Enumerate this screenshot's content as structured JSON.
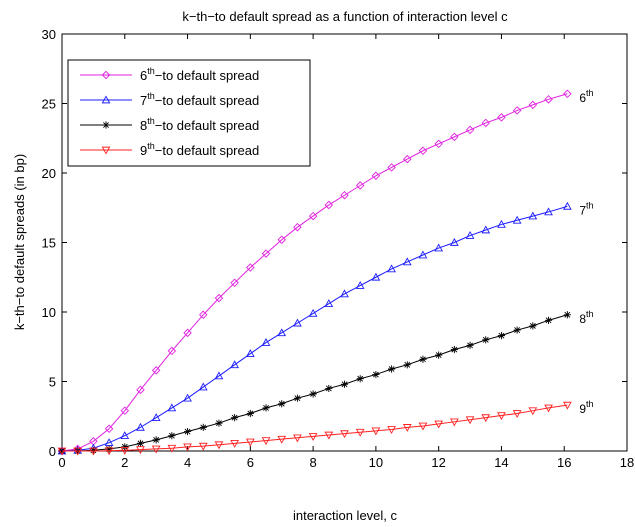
{
  "chart_data": {
    "type": "line",
    "title": "k−th−to default spread as a function of interaction level c",
    "xlabel": "interaction level, c",
    "ylabel": "k−th−to default spreads (in bp)",
    "xlim": [
      0,
      18
    ],
    "ylim": [
      0,
      30
    ],
    "xticks": [
      0,
      2,
      4,
      6,
      8,
      10,
      12,
      14,
      16,
      18
    ],
    "yticks": [
      0,
      5,
      10,
      15,
      20,
      25,
      30
    ],
    "grid": false,
    "legend_position": "top-left",
    "x": [
      0,
      0.5,
      1.0,
      1.5,
      2.0,
      2.5,
      3.0,
      3.5,
      4.0,
      4.5,
      5.0,
      5.5,
      6.0,
      6.5,
      7.0,
      7.5,
      8.0,
      8.5,
      9.0,
      9.5,
      10.0,
      10.5,
      11.0,
      11.5,
      12.0,
      12.5,
      13.0,
      13.5,
      14.0,
      14.5,
      15.0,
      15.5,
      16.1
    ],
    "series": [
      {
        "name": "6th−to default spread",
        "sup": "th",
        "base": "6",
        "rest": "−to default spread",
        "end_label_base": "6",
        "end_label_sup": "th",
        "color": "#e020e0",
        "marker": "diamond",
        "values": [
          0.0,
          0.15,
          0.7,
          1.6,
          2.9,
          4.4,
          5.8,
          7.2,
          8.5,
          9.8,
          11.0,
          12.1,
          13.2,
          14.2,
          15.2,
          16.1,
          16.9,
          17.7,
          18.4,
          19.1,
          19.8,
          20.4,
          21.0,
          21.6,
          22.1,
          22.6,
          23.1,
          23.6,
          24.0,
          24.5,
          24.9,
          25.3,
          25.7
        ]
      },
      {
        "name": "7th−to default spread",
        "sup": "th",
        "base": "7",
        "rest": "−to default spread",
        "end_label_base": "7",
        "end_label_sup": "th",
        "color": "#1c1cff",
        "marker": "triangle-up",
        "values": [
          0.0,
          0.05,
          0.2,
          0.6,
          1.1,
          1.7,
          2.4,
          3.1,
          3.8,
          4.6,
          5.4,
          6.2,
          7.0,
          7.8,
          8.5,
          9.2,
          9.9,
          10.6,
          11.3,
          11.9,
          12.5,
          13.1,
          13.6,
          14.1,
          14.6,
          15.0,
          15.5,
          15.9,
          16.3,
          16.6,
          16.9,
          17.2,
          17.6
        ]
      },
      {
        "name": "8th−to default spread",
        "sup": "th",
        "base": "8",
        "rest": "−to default spread",
        "end_label_base": "8",
        "end_label_sup": "th",
        "color": "#000000",
        "marker": "asterisk",
        "values": [
          0.0,
          0.0,
          0.05,
          0.15,
          0.3,
          0.55,
          0.8,
          1.1,
          1.4,
          1.7,
          2.0,
          2.4,
          2.7,
          3.1,
          3.4,
          3.8,
          4.1,
          4.5,
          4.8,
          5.2,
          5.5,
          5.9,
          6.2,
          6.6,
          6.9,
          7.3,
          7.6,
          8.0,
          8.3,
          8.7,
          9.0,
          9.4,
          9.8
        ]
      },
      {
        "name": "9th−to default spread",
        "sup": "th",
        "base": "9",
        "rest": "−to default spread",
        "end_label_base": "9",
        "end_label_sup": "th",
        "color": "#ff2020",
        "marker": "triangle-down",
        "values": [
          0.0,
          0.0,
          0.0,
          0.02,
          0.05,
          0.1,
          0.15,
          0.2,
          0.3,
          0.35,
          0.45,
          0.55,
          0.65,
          0.75,
          0.85,
          0.95,
          1.05,
          1.15,
          1.25,
          1.35,
          1.45,
          1.55,
          1.7,
          1.8,
          1.95,
          2.1,
          2.25,
          2.4,
          2.55,
          2.7,
          2.9,
          3.1,
          3.3
        ]
      }
    ]
  }
}
